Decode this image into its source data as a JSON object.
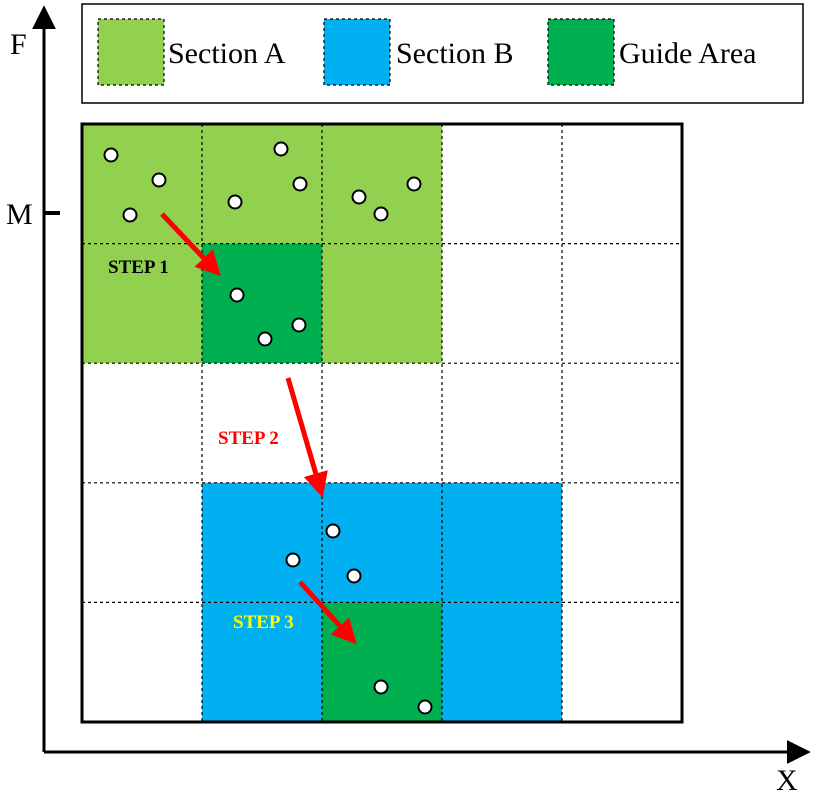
{
  "axes": {
    "y_label": "F",
    "x_label": "X",
    "y_tick_label": "M"
  },
  "legend": {
    "items": [
      {
        "label": "Section A",
        "color": "#92d050"
      },
      {
        "label": "Section B",
        "color": "#00b0f0"
      },
      {
        "label": "Guide Area",
        "color": "#00b050"
      }
    ]
  },
  "grid": {
    "rows": 5,
    "cols": 5,
    "cell_fills": [
      [
        "#92d050",
        "#92d050",
        "#92d050",
        "#ffffff",
        "#ffffff"
      ],
      [
        "#92d050",
        "#00b050",
        "#92d050",
        "#ffffff",
        "#ffffff"
      ],
      [
        "#ffffff",
        "#ffffff",
        "#ffffff",
        "#ffffff",
        "#ffffff"
      ],
      [
        "#ffffff",
        "#00b0f0",
        "#00b0f0",
        "#00b0f0",
        "#ffffff"
      ],
      [
        "#ffffff",
        "#00b0f0",
        "#00b050",
        "#00b0f0",
        "#ffffff"
      ]
    ]
  },
  "steps": [
    {
      "label": "STEP 1",
      "color": "#000000"
    },
    {
      "label": "STEP 2",
      "color": "#ff0000"
    },
    {
      "label": "STEP 3",
      "color": "#ffff00"
    }
  ],
  "colors": {
    "arrow": "#ff0000",
    "axis": "#000000",
    "point_fill": "#ffffff"
  }
}
